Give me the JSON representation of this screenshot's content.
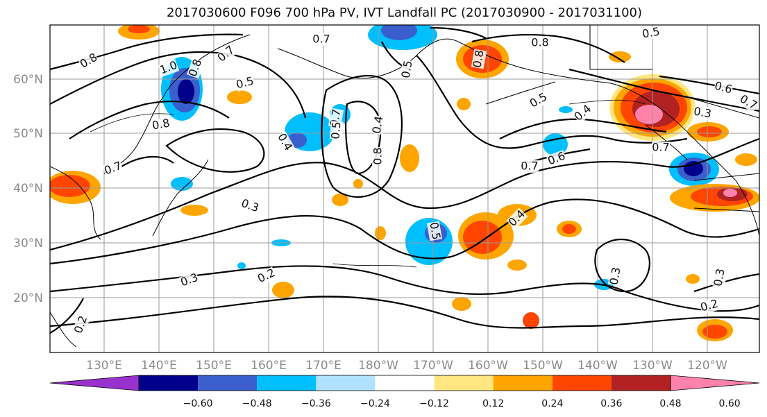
{
  "title": "2017030600 F096 700 hPa PV, IVT Landfall PC (2017030900 - 2017031100)",
  "lon_labels": [
    "130°E",
    "140°E",
    "150°E",
    "160°E",
    "170°E",
    "180°W",
    "170°W",
    "160°W",
    "150°W",
    "140°W",
    "130°W",
    "120°W"
  ],
  "lat_labels": [
    "60°N",
    "50°N",
    "40°N",
    "30°N",
    "20°N"
  ],
  "colorbar": {
    "tick_labels": [
      "−0.60",
      "−0.48",
      "−0.36",
      "−0.24",
      "−0.12",
      "0.12",
      "0.24",
      "0.36",
      "0.48",
      "0.60"
    ],
    "colors": [
      "#9932cc",
      "#00008b",
      "#3a5fcd",
      "#00bfff",
      "#b0e2ff",
      "#ffffff",
      "#ffe680",
      "#ffa500",
      "#ff4500",
      "#b22222",
      "#ff82ab"
    ]
  },
  "contour_labels": [
    "0.8",
    "1.0",
    "0.8",
    "0.7",
    "0.7",
    "0.5",
    "0.8",
    "0.7",
    "0.4",
    "0.3",
    "0.2",
    "0.3",
    "0.2",
    "0.7",
    "0.5",
    "0.8",
    "0.4",
    "0.5",
    "0.4",
    "0.3",
    "0.5",
    "0.8",
    "0.5",
    "0.4",
    "0.7",
    "0.6",
    "0.5",
    "0.8",
    "0.6",
    "0.7",
    "0.7",
    "0.3",
    "0.2",
    "0.3"
  ]
}
